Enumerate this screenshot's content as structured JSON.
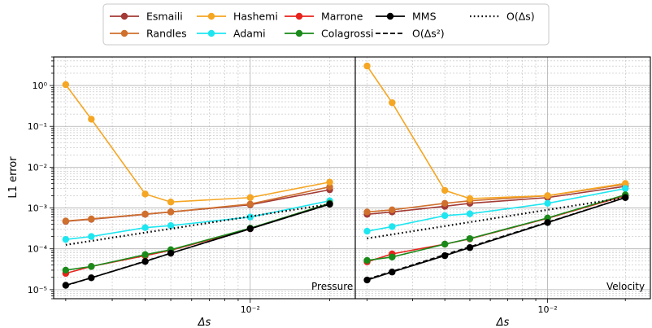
{
  "chart_data": [
    {
      "type": "line",
      "panel_label": "Pressure",
      "xlabel": "Δs",
      "ylabel": "L1 error",
      "xscale": "log",
      "yscale": "log",
      "xlim": [
        0.0018,
        0.025
      ],
      "ylim": [
        6e-06,
        5.0
      ],
      "x_tick_labels": [
        {
          "value": 0.01,
          "label": "10⁻²"
        }
      ],
      "y_tick_labels": [
        {
          "value": 1e-05,
          "label": "10⁻⁵"
        },
        {
          "value": 0.0001,
          "label": "10⁻⁴"
        },
        {
          "value": 0.001,
          "label": "10⁻³"
        },
        {
          "value": 0.01,
          "label": "10⁻²"
        },
        {
          "value": 0.1,
          "label": "10⁻¹"
        },
        {
          "value": 1,
          "label": "10⁰"
        }
      ],
      "grid": true,
      "x": [
        0.002,
        0.0025,
        0.004,
        0.005,
        0.01,
        0.02
      ],
      "series": [
        {
          "name": "Esmaili",
          "color": "#a33a35",
          "marker": "circle",
          "linestyle": "solid",
          "values": [
            0.00047,
            0.00053,
            0.0007,
            0.0008,
            0.0012,
            0.0028
          ]
        },
        {
          "name": "Randles",
          "color": "#d0702d",
          "marker": "circle",
          "linestyle": "solid",
          "values": [
            0.00048,
            0.00054,
            0.00071,
            0.0008,
            0.00125,
            0.0033
          ]
        },
        {
          "name": "Hashemi",
          "color": "#f5a623",
          "marker": "circle",
          "linestyle": "solid",
          "values": [
            1.05,
            0.15,
            0.0022,
            0.0014,
            0.0018,
            0.0043
          ]
        },
        {
          "name": "Adami",
          "color": "#1ee6f0",
          "marker": "circle",
          "linestyle": "solid",
          "values": [
            0.00017,
            0.0002,
            0.00033,
            0.00037,
            0.0006,
            0.0015
          ]
        },
        {
          "name": "Marrone",
          "color": "#e8231c",
          "marker": "circle",
          "linestyle": "solid",
          "values": [
            2.5e-05,
            3.7e-05,
            6.8e-05,
            9.2e-05,
            0.00031,
            0.0013
          ]
        },
        {
          "name": "Colagrossi",
          "color": "#1a8a1a",
          "marker": "circle",
          "linestyle": "solid",
          "values": [
            3e-05,
            3.7e-05,
            7.2e-05,
            9.5e-05,
            0.00032,
            0.0013
          ]
        },
        {
          "name": "MMS",
          "color": "#000000",
          "marker": "circle",
          "linestyle": "solid",
          "values": [
            1.28e-05,
            1.95e-05,
            4.9e-05,
            7.8e-05,
            0.00031,
            0.00124
          ]
        },
        {
          "name": "O(Δs²)",
          "color": "#000000",
          "marker": "none",
          "linestyle": "dashed",
          "values": [
            1.25e-05,
            1.95e-05,
            5e-05,
            7.8e-05,
            0.00031,
            0.00124
          ]
        },
        {
          "name": "O(Δs)",
          "color": "#000000",
          "marker": "none",
          "linestyle": "dotted",
          "values": [
            0.000125,
            0.000156,
            0.00025,
            0.00031,
            0.00062,
            0.00124
          ]
        }
      ]
    },
    {
      "type": "line",
      "panel_label": "Velocity",
      "xlabel": "Δs",
      "ylabel": "",
      "xscale": "log",
      "yscale": "log",
      "xlim": [
        0.0018,
        0.025
      ],
      "ylim": [
        6e-06,
        5.0
      ],
      "x_tick_labels": [
        {
          "value": 0.01,
          "label": "10⁻²"
        }
      ],
      "grid": true,
      "x": [
        0.002,
        0.0025,
        0.004,
        0.005,
        0.01,
        0.02
      ],
      "series": [
        {
          "name": "Esmaili",
          "color": "#a33a35",
          "marker": "circle",
          "linestyle": "solid",
          "values": [
            0.0007,
            0.0008,
            0.0011,
            0.0013,
            0.0018,
            0.0034
          ]
        },
        {
          "name": "Randles",
          "color": "#d0702d",
          "marker": "circle",
          "linestyle": "solid",
          "values": [
            0.0008,
            0.0009,
            0.0013,
            0.0015,
            0.002,
            0.0038
          ]
        },
        {
          "name": "Hashemi",
          "color": "#f5a623",
          "marker": "circle",
          "linestyle": "solid",
          "values": [
            3.0,
            0.38,
            0.0027,
            0.0017,
            0.002,
            0.004
          ]
        },
        {
          "name": "Adami",
          "color": "#1ee6f0",
          "marker": "circle",
          "linestyle": "solid",
          "values": [
            0.00027,
            0.00035,
            0.00065,
            0.00072,
            0.0013,
            0.003
          ]
        },
        {
          "name": "Marrone",
          "color": "#e8231c",
          "marker": "circle",
          "linestyle": "solid",
          "values": [
            4.8e-05,
            7.5e-05,
            0.00013,
            0.000175,
            0.00056,
            0.002
          ]
        },
        {
          "name": "Colagrossi",
          "color": "#1a8a1a",
          "marker": "circle",
          "linestyle": "solid",
          "values": [
            5.2e-05,
            6.3e-05,
            0.00013,
            0.000178,
            0.00057,
            0.0021
          ]
        },
        {
          "name": "MMS",
          "color": "#000000",
          "marker": "circle",
          "linestyle": "solid",
          "values": [
            1.72e-05,
            2.7e-05,
            6.8e-05,
            0.000107,
            0.00044,
            0.0018
          ]
        },
        {
          "name": "O(Δs²)",
          "color": "#000000",
          "marker": "none",
          "linestyle": "dashed",
          "values": [
            1.8e-05,
            2.8e-05,
            7.2e-05,
            0.000112,
            0.00045,
            0.0018
          ]
        },
        {
          "name": "O(Δs)",
          "color": "#000000",
          "marker": "none",
          "linestyle": "dotted",
          "values": [
            0.00018,
            0.000225,
            0.00036,
            0.00045,
            0.0009,
            0.0018
          ]
        }
      ]
    }
  ],
  "legend": {
    "placement": "top-center",
    "columns": 5,
    "entries": [
      {
        "label": "Esmaili",
        "color": "#a33a35",
        "marker": "circle",
        "linestyle": "solid"
      },
      {
        "label": "Randles",
        "color": "#d0702d",
        "marker": "circle",
        "linestyle": "solid"
      },
      {
        "label": "Hashemi",
        "color": "#f5a623",
        "marker": "circle",
        "linestyle": "solid"
      },
      {
        "label": "Adami",
        "color": "#1ee6f0",
        "marker": "circle",
        "linestyle": "solid"
      },
      {
        "label": "Marrone",
        "color": "#e8231c",
        "marker": "circle",
        "linestyle": "solid"
      },
      {
        "label": "Colagrossi",
        "color": "#1a8a1a",
        "marker": "circle",
        "linestyle": "solid"
      },
      {
        "label": "MMS",
        "color": "#000000",
        "marker": "circle",
        "linestyle": "solid"
      },
      {
        "label": "O(Δs²)",
        "color": "#000000",
        "marker": "none",
        "linestyle": "dashed"
      },
      {
        "label": "O(Δs)",
        "color": "#000000",
        "marker": "none",
        "linestyle": "dotted"
      }
    ]
  }
}
